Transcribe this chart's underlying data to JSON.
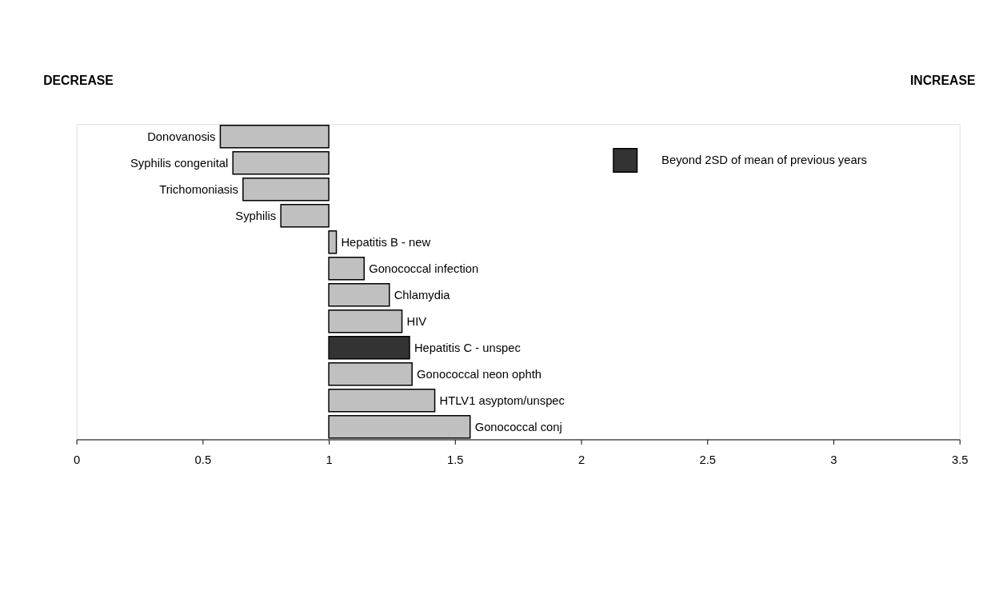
{
  "chart_data": {
    "type": "bar",
    "orientation": "horizontal",
    "categories": [
      "Donovanosis",
      "Syphilis congenital",
      "Trichomoniasis",
      "Syphilis",
      "Hepatitis B - new",
      "Gonococcal infection",
      "Chlamydia",
      "HIV",
      "Hepatitis C - unspec",
      "Gonococcal neon ophth",
      "HTLV1 asyptom/unspec",
      "Gonococcal conj"
    ],
    "series": [
      {
        "color": "#c0c0c0",
        "base": [
          1,
          1,
          1,
          1,
          1,
          1,
          1,
          1,
          null,
          1,
          1,
          1
        ],
        "values": [
          -0.43,
          -0.38,
          -0.34,
          -0.19,
          0.03,
          0.14,
          0.24,
          0.29,
          null,
          0.33,
          0.42,
          0.56
        ]
      },
      {
        "name": "Beyond 2SD of mean of previous years",
        "color": "#333333",
        "base": [
          null,
          null,
          null,
          null,
          null,
          null,
          null,
          null,
          1,
          null,
          null,
          null
        ],
        "values": [
          null,
          null,
          null,
          null,
          null,
          null,
          null,
          null,
          0.32,
          null,
          null,
          null
        ]
      }
    ],
    "xlim": [
      0,
      3.5
    ],
    "xticks": [
      0,
      0.5,
      1,
      1.5,
      2,
      2.5,
      3,
      3.5
    ],
    "annotations": [
      "DECREASE",
      "INCREASE"
    ],
    "grid": false,
    "legend": "top right"
  }
}
